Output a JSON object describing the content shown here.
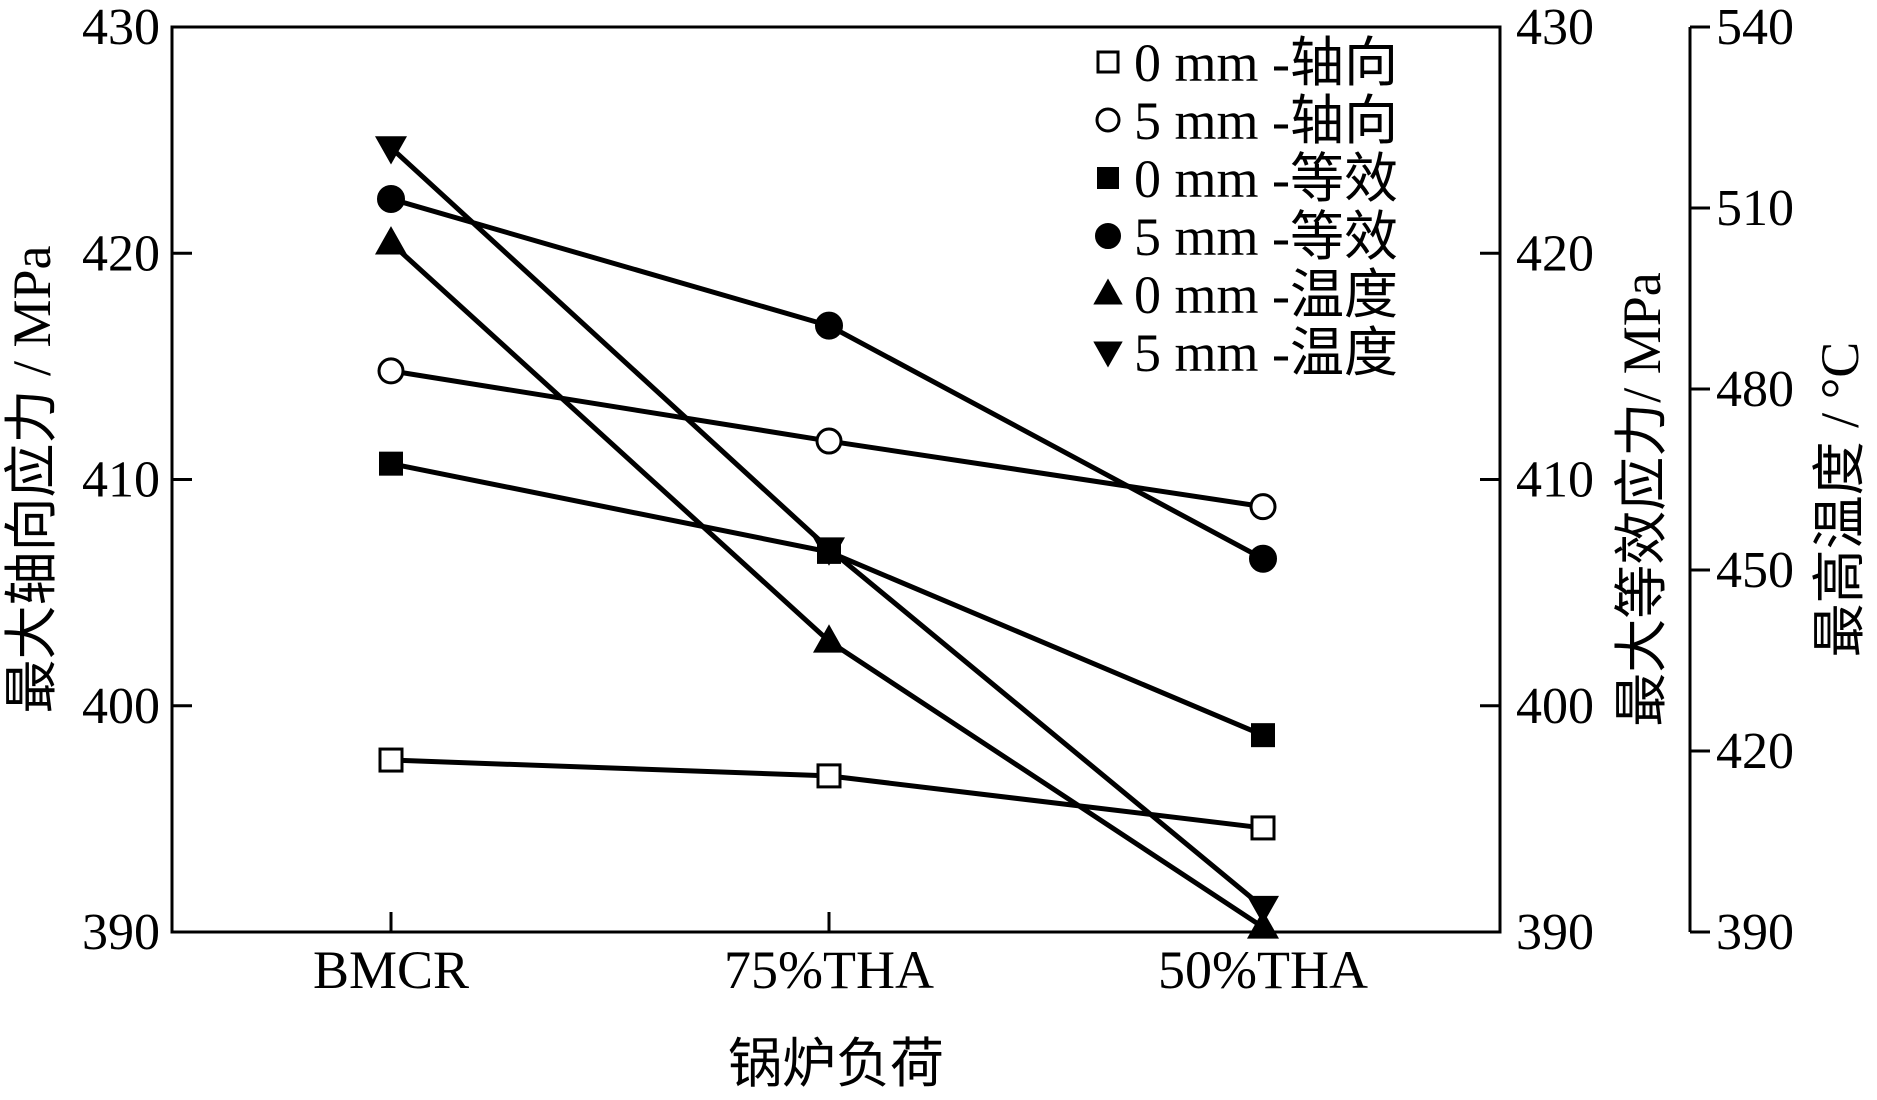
{
  "chart_data": {
    "type": "line",
    "title": "",
    "categories": [
      "BMCR",
      "75%THA",
      "50%THA"
    ],
    "xlabel": "锅炉负荷",
    "axes": {
      "left": {
        "label": "最大轴向应力 / MPa",
        "range": [
          390,
          430
        ],
        "ticks": [
          390,
          400,
          410,
          420,
          430
        ]
      },
      "right1": {
        "label": "最大等效应力/ MPa",
        "range": [
          390,
          430
        ],
        "ticks": [
          390,
          400,
          410,
          420,
          430
        ]
      },
      "right2": {
        "label": "最高温度 / °C",
        "range": [
          390,
          540
        ],
        "ticks": [
          390,
          420,
          450,
          480,
          510,
          540
        ]
      }
    },
    "legend_position": "top-right",
    "grid": false,
    "series": [
      {
        "name": "0 mm -轴向",
        "axis": "left",
        "marker": "square-open",
        "values": [
          397.6,
          396.9,
          394.6
        ]
      },
      {
        "name": "5 mm -轴向",
        "axis": "left",
        "marker": "circle-open",
        "values": [
          414.8,
          411.7,
          408.8
        ]
      },
      {
        "name": "0 mm -等效",
        "axis": "right1",
        "marker": "square-filled",
        "values": [
          410.7,
          406.8,
          398.7
        ]
      },
      {
        "name": "5 mm -等效",
        "axis": "right1",
        "marker": "circle-filled",
        "values": [
          422.4,
          416.8,
          406.5
        ]
      },
      {
        "name": "0 mm -温度",
        "axis": "right2",
        "marker": "triangle-up",
        "values": [
          504.2,
          438.2,
          390.8
        ]
      },
      {
        "name": "5 mm -温度",
        "axis": "right2",
        "marker": "triangle-down",
        "values": [
          520.0,
          453.5,
          394.1
        ]
      }
    ]
  }
}
